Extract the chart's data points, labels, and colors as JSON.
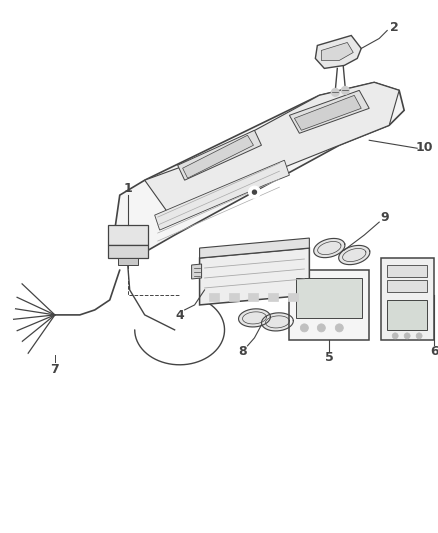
{
  "background_color": "#ffffff",
  "line_color": "#444444",
  "fig_width": 4.38,
  "fig_height": 5.33,
  "dpi": 100
}
